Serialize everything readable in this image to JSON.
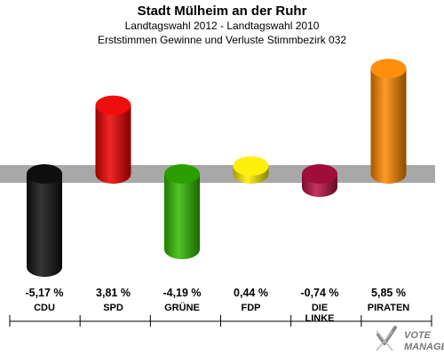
{
  "chart_data": {
    "type": "bar",
    "title": "Stadt Mülheim an der Ruhr",
    "subtitle": "Landtagswahl 2012 - Landtagswahl 2010",
    "subtitle2": "Erststimmen Gewinne und Verluste Stimmbezirk 032",
    "categories": [
      "CDU",
      "SPD",
      "GRÜNE",
      "FDP",
      "DIE LINKE",
      "PIRATEN"
    ],
    "category_lines": [
      [
        "CDU"
      ],
      [
        "SPD"
      ],
      [
        "GRÜNE"
      ],
      [
        "FDP"
      ],
      [
        "DIE",
        "LINKE"
      ],
      [
        "PIRATEN"
      ]
    ],
    "values": [
      -5.17,
      3.81,
      -4.19,
      0.44,
      -0.74,
      5.85
    ],
    "value_labels": [
      "-5,17 %",
      "3,81 %",
      "-4,19 %",
      "0,44 %",
      "-0,74 %",
      "5,85 %"
    ],
    "colors": [
      "#111111",
      "#ee0000",
      "#33bb00",
      "#ffee00",
      "#bb1144",
      "#ff8800"
    ],
    "ylim": [
      -6.5,
      6.5
    ],
    "grid": false,
    "legend": "none"
  },
  "watermark": {
    "text_line1": "VOTE",
    "text_line2": "MANAGER"
  }
}
